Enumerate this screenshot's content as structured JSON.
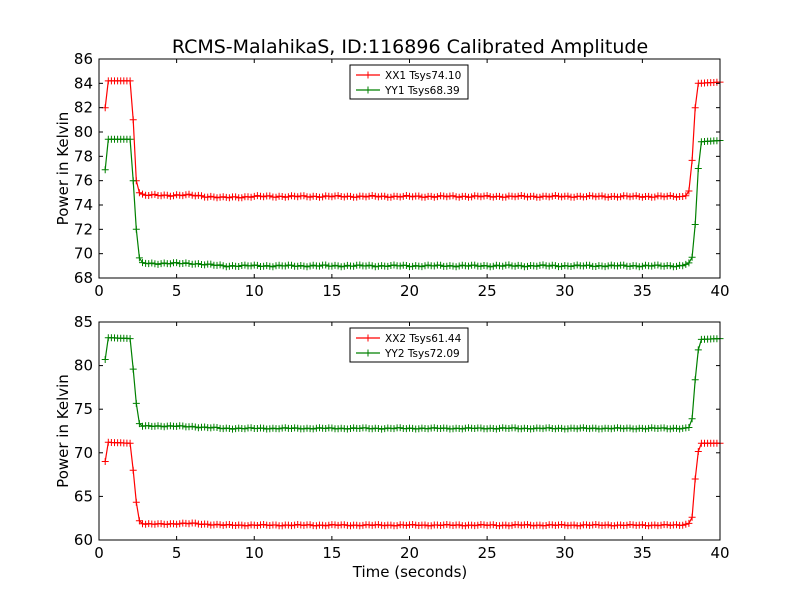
{
  "figure": {
    "title": "RCMS-MalahikaS, ID:116896 Calibrated Amplitude",
    "xlabel": "Time (seconds)"
  },
  "colors": {
    "red": "#ff0000",
    "green": "#008000"
  },
  "chart_data": [
    {
      "type": "line",
      "ylabel": "Power in Kelvin",
      "xlim": [
        0,
        40
      ],
      "ylim": [
        68,
        86
      ],
      "xticks": [
        "0",
        "5",
        "10",
        "15",
        "20",
        "25",
        "30",
        "35",
        "40"
      ],
      "yticks": [
        "68",
        "70",
        "72",
        "74",
        "76",
        "78",
        "80",
        "82",
        "84",
        "86"
      ],
      "legend_placement": "top-center",
      "grid": false,
      "series": [
        {
          "name": "XX1 Tsys74.10",
          "color": "red",
          "keypoints": [
            [
              0.4,
              82.0
            ],
            [
              0.6,
              84.2
            ],
            [
              2.0,
              84.2
            ],
            [
              2.2,
              81.0
            ],
            [
              2.4,
              76.0
            ],
            [
              2.6,
              75.0
            ],
            [
              3.0,
              74.8
            ],
            [
              6.0,
              74.8
            ],
            [
              8.0,
              74.6
            ],
            [
              10.0,
              74.7
            ],
            [
              37.6,
              74.7
            ],
            [
              37.9,
              74.8
            ],
            [
              38.1,
              75.5
            ],
            [
              38.4,
              82.0
            ],
            [
              38.6,
              84.0
            ],
            [
              40.0,
              84.1
            ]
          ]
        },
        {
          "name": "YY1 Tsys68.39",
          "color": "green",
          "keypoints": [
            [
              0.4,
              76.9
            ],
            [
              0.6,
              79.4
            ],
            [
              2.0,
              79.4
            ],
            [
              2.2,
              76.0
            ],
            [
              2.5,
              70.0
            ],
            [
              2.7,
              69.3
            ],
            [
              3.0,
              69.2
            ],
            [
              6.0,
              69.2
            ],
            [
              8.0,
              69.0
            ],
            [
              37.6,
              69.0
            ],
            [
              38.1,
              69.3
            ],
            [
              38.3,
              70.1
            ],
            [
              38.6,
              77.0
            ],
            [
              38.8,
              79.2
            ],
            [
              40.0,
              79.3
            ]
          ]
        }
      ]
    },
    {
      "type": "line",
      "ylabel": "Power in Kelvin",
      "xlabel": "Time (seconds)",
      "xlim": [
        0,
        40
      ],
      "ylim": [
        60,
        85
      ],
      "xticks": [
        "0",
        "5",
        "10",
        "15",
        "20",
        "25",
        "30",
        "35",
        "40"
      ],
      "yticks": [
        "60",
        "65",
        "70",
        "75",
        "80",
        "85"
      ],
      "legend_placement": "top-center",
      "grid": false,
      "series": [
        {
          "name": "XX2 Tsys61.44",
          "color": "red",
          "keypoints": [
            [
              0.4,
              69.0
            ],
            [
              0.6,
              71.2
            ],
            [
              2.0,
              71.1
            ],
            [
              2.2,
              68.0
            ],
            [
              2.5,
              62.5
            ],
            [
              2.7,
              61.9
            ],
            [
              3.0,
              61.8
            ],
            [
              6.0,
              61.9
            ],
            [
              8.0,
              61.7
            ],
            [
              37.6,
              61.7
            ],
            [
              38.0,
              61.9
            ],
            [
              38.2,
              62.6
            ],
            [
              38.5,
              69.2
            ],
            [
              38.7,
              71.1
            ],
            [
              40.0,
              71.1
            ]
          ]
        },
        {
          "name": "YY2 Tsys72.09",
          "color": "green",
          "keypoints": [
            [
              0.4,
              80.7
            ],
            [
              0.6,
              83.2
            ],
            [
              2.0,
              83.1
            ],
            [
              2.2,
              79.6
            ],
            [
              2.5,
              73.7
            ],
            [
              2.7,
              73.0
            ],
            [
              3.0,
              73.1
            ],
            [
              6.0,
              73.0
            ],
            [
              8.0,
              72.8
            ],
            [
              37.6,
              72.8
            ],
            [
              38.0,
              72.9
            ],
            [
              38.2,
              73.9
            ],
            [
              38.5,
              80.6
            ],
            [
              38.7,
              83.0
            ],
            [
              40.0,
              83.1
            ]
          ]
        }
      ]
    }
  ]
}
